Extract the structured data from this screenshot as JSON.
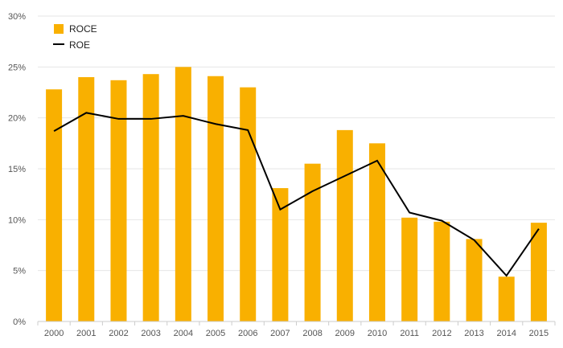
{
  "chart_data": {
    "type": "bar",
    "categories": [
      "2000",
      "2001",
      "2002",
      "2003",
      "2004",
      "2005",
      "2006",
      "2007",
      "2008",
      "2009",
      "2010",
      "2011",
      "2012",
      "2013",
      "2014",
      "2015"
    ],
    "series": [
      {
        "name": "ROCE",
        "type": "bar",
        "color": "#f9b000",
        "values": [
          22.8,
          24.0,
          23.7,
          24.3,
          25.0,
          24.1,
          23.0,
          13.1,
          15.5,
          18.8,
          17.5,
          10.2,
          9.8,
          8.1,
          4.4,
          9.7
        ]
      },
      {
        "name": "ROE",
        "type": "line",
        "color": "#000000",
        "values": [
          18.7,
          20.5,
          19.9,
          19.9,
          20.2,
          19.4,
          18.8,
          11.0,
          12.8,
          14.3,
          15.8,
          10.7,
          9.9,
          8.0,
          4.5,
          9.1
        ]
      }
    ],
    "y_ticks": [
      "0%",
      "5%",
      "10%",
      "15%",
      "20%",
      "25%",
      "30%"
    ],
    "ylim": [
      0,
      30
    ],
    "grid": true,
    "legend_position": "top-left"
  }
}
